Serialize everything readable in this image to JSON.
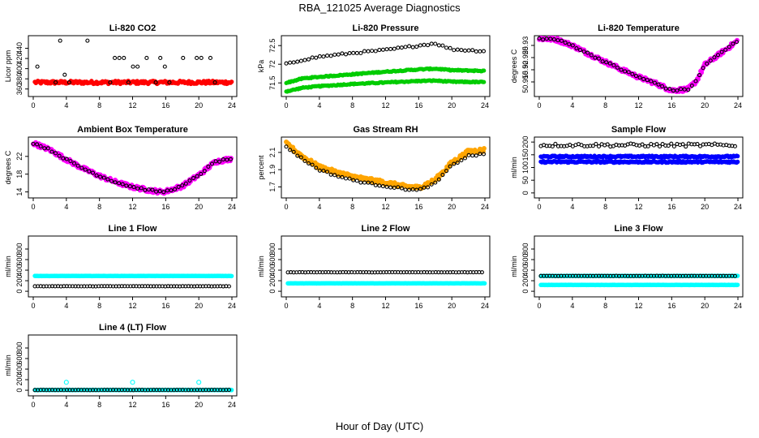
{
  "figure": {
    "title": "RBA_121025  Average Diagnostics",
    "xlabel": "Hour of Day (UTC)"
  },
  "chart_data": [
    {
      "title": "Li-820 CO2",
      "type": "scatter",
      "ylabel": "Licor ppm",
      "xlim": [
        0,
        24
      ],
      "ylim": [
        350,
        460
      ],
      "xticks": [
        0,
        4,
        8,
        12,
        16,
        20,
        24
      ],
      "yticks": [
        360,
        380,
        400,
        420,
        440
      ],
      "series": [
        {
          "color": "#ff0000",
          "filled": true,
          "values": "dense band at ~373 across 0–24",
          "level": 373,
          "spread": 3
        },
        {
          "color": "#000000",
          "values": "scattered points at 355, 373, 388, 404, 421, 455"
        }
      ],
      "marker_levels": [
        355,
        373,
        388,
        404,
        421,
        455
      ]
    },
    {
      "title": "Li-820 Pressure",
      "type": "scatter",
      "ylabel": "kPa",
      "xlim": [
        0,
        24
      ],
      "ylim": [
        71.2,
        72.7
      ],
      "xticks": [
        0,
        4,
        8,
        12,
        16,
        20,
        24
      ],
      "yticks": [
        71.5,
        72.0,
        72.5
      ],
      "series": [
        {
          "color": "#00cc00",
          "filled": true,
          "x": [
            0,
            2,
            4,
            8,
            12,
            16,
            18,
            20,
            24
          ],
          "upper": [
            71.5,
            71.62,
            71.66,
            71.73,
            71.8,
            71.86,
            71.88,
            71.84,
            71.82
          ],
          "lower": [
            71.27,
            71.37,
            71.41,
            71.47,
            71.51,
            71.55,
            71.56,
            71.53,
            71.52
          ]
        },
        {
          "color": "#000000",
          "x": [
            0,
            2,
            4,
            8,
            12,
            16,
            18,
            20,
            24
          ],
          "y": [
            72.0,
            72.12,
            72.2,
            72.3,
            72.38,
            72.5,
            72.56,
            72.4,
            72.35
          ]
        }
      ]
    },
    {
      "title": "Li-820 Temperature",
      "type": "scatter",
      "ylabel": "degrees C",
      "xlim": [
        0,
        24
      ],
      "ylim": [
        50.91,
        50.933
      ],
      "xticks": [
        0,
        4,
        8,
        12,
        16,
        20,
        24
      ],
      "yticks": [
        50.915,
        50.92,
        50.925,
        50.93
      ],
      "series": [
        {
          "color": "#ff00ff",
          "filled": true,
          "x": [
            0,
            2,
            4,
            6,
            8,
            10,
            12,
            14,
            16,
            18,
            19,
            20,
            22,
            24
          ],
          "y": [
            50.9328,
            50.9325,
            50.93,
            50.9265,
            50.9232,
            50.92,
            50.917,
            50.9145,
            50.9115,
            50.912,
            50.9155,
            50.922,
            50.927,
            50.932
          ]
        },
        {
          "color": "#000000",
          "x": [
            0,
            2,
            4,
            6,
            8,
            10,
            12,
            14,
            16,
            18,
            19,
            20,
            22,
            24
          ],
          "y": [
            50.9328,
            50.9325,
            50.93,
            50.9265,
            50.9232,
            50.92,
            50.917,
            50.9145,
            50.9115,
            50.912,
            50.9155,
            50.922,
            50.927,
            50.932
          ]
        }
      ]
    },
    {
      "title": "Ambient Box Temperature",
      "type": "scatter",
      "ylabel": "degrees C",
      "xlim": [
        0,
        24
      ],
      "ylim": [
        13.2,
        25.8
      ],
      "xticks": [
        0,
        4,
        8,
        12,
        16,
        20,
        24
      ],
      "yticks": [
        14,
        18,
        22
      ],
      "series": [
        {
          "color": "#ff00ff",
          "filled": true,
          "x": [
            0,
            2,
            4,
            6,
            8,
            10,
            12,
            14,
            15.5,
            16,
            18,
            20,
            22,
            24
          ],
          "y": [
            25.0,
            23.5,
            21.3,
            19.3,
            17.6,
            16.2,
            15.1,
            14.4,
            14.0,
            14.1,
            15.3,
            17.8,
            20.8,
            21.5
          ]
        },
        {
          "color": "#000000",
          "x": [
            0,
            2,
            4,
            6,
            8,
            10,
            12,
            14,
            15.5,
            16,
            18,
            20,
            22,
            24
          ],
          "y": [
            25.0,
            23.5,
            21.3,
            19.3,
            17.6,
            16.2,
            15.1,
            14.4,
            14.0,
            14.1,
            15.3,
            17.8,
            20.8,
            21.5
          ]
        }
      ]
    },
    {
      "title": "Gas Stream RH",
      "type": "scatter",
      "ylabel": "percent",
      "xlim": [
        0,
        24
      ],
      "ylim": [
        1.6,
        2.25
      ],
      "xticks": [
        0,
        4,
        8,
        12,
        16,
        20,
        24
      ],
      "yticks": [
        1.7,
        1.9,
        2.1
      ],
      "series": [
        {
          "color": "#ffa500",
          "filled": true,
          "x": [
            0,
            2,
            4,
            6,
            8,
            10,
            12,
            14,
            16,
            18,
            20,
            22,
            24
          ],
          "y": [
            2.2,
            2.05,
            1.93,
            1.87,
            1.82,
            1.78,
            1.75,
            1.71,
            1.69,
            1.78,
            1.98,
            2.11,
            2.13
          ]
        },
        {
          "color": "#000000",
          "x": [
            0,
            2,
            4,
            6,
            8,
            10,
            12,
            14,
            16,
            18,
            20,
            22,
            24
          ],
          "y": [
            2.17,
            2.02,
            1.9,
            1.83,
            1.78,
            1.74,
            1.71,
            1.68,
            1.66,
            1.74,
            1.95,
            2.06,
            2.08
          ]
        }
      ]
    },
    {
      "title": "Sample Flow",
      "type": "scatter",
      "ylabel": "ml/min",
      "xlim": [
        0,
        24
      ],
      "ylim": [
        -10,
        210
      ],
      "xticks": [
        0,
        4,
        8,
        12,
        16,
        20,
        24
      ],
      "yticks": [
        0,
        50,
        100,
        150,
        200
      ],
      "series": [
        {
          "color": "#0000ff",
          "filled": true,
          "level": 143,
          "spread": 3
        },
        {
          "color": "#0000ff",
          "filled": true,
          "level": 122,
          "spread": 3
        },
        {
          "color": "#000000",
          "level": 188,
          "spread": 6
        }
      ]
    },
    {
      "title": "Line 1 Flow",
      "type": "scatter",
      "ylabel": "ml/min",
      "xlim": [
        0,
        24
      ],
      "ylim": [
        -60,
        1000
      ],
      "xticks": [
        0,
        4,
        8,
        12,
        16,
        20,
        24
      ],
      "yticks": [
        0,
        200,
        400,
        600,
        800
      ],
      "series": [
        {
          "color": "#00ffff",
          "filled": true,
          "level": 290
        },
        {
          "color": "#000000",
          "level": 95
        }
      ]
    },
    {
      "title": "Line 2 Flow",
      "type": "scatter",
      "ylabel": "ml/min",
      "xlim": [
        0,
        24
      ],
      "ylim": [
        -60,
        1000
      ],
      "xticks": [
        0,
        4,
        8,
        12,
        16,
        20,
        24
      ],
      "yticks": [
        0,
        200,
        400,
        600,
        800
      ],
      "series": [
        {
          "color": "#000000",
          "level": 360
        },
        {
          "color": "#00ffff",
          "filled": true,
          "level": 150
        }
      ]
    },
    {
      "title": "Line 3 Flow",
      "type": "scatter",
      "ylabel": "ml/min",
      "xlim": [
        0,
        24
      ],
      "ylim": [
        -60,
        1000
      ],
      "xticks": [
        0,
        4,
        8,
        12,
        16,
        20,
        24
      ],
      "yticks": [
        0,
        200,
        400,
        600,
        800
      ],
      "series": [
        {
          "color": "#00ffff",
          "filled": true,
          "level": 290
        },
        {
          "color": "#000000",
          "level": 290
        },
        {
          "color": "#00ffff",
          "filled": true,
          "level": 120
        }
      ]
    },
    {
      "title": "Line 4 (LT) Flow",
      "type": "scatter",
      "ylabel": "ml/min",
      "xlim": [
        0,
        24
      ],
      "ylim": [
        -60,
        1000
      ],
      "xticks": [
        0,
        4,
        8,
        12,
        16,
        20,
        24
      ],
      "yticks": [
        0,
        200,
        400,
        600,
        800
      ],
      "series": [
        {
          "color": "#00ffff",
          "filled": true,
          "level": 5
        },
        {
          "color": "#000000",
          "level": 5
        },
        {
          "color": "#00ffff",
          "x": [
            4,
            12,
            20
          ],
          "y": [
            150,
            150,
            150
          ]
        }
      ]
    }
  ]
}
